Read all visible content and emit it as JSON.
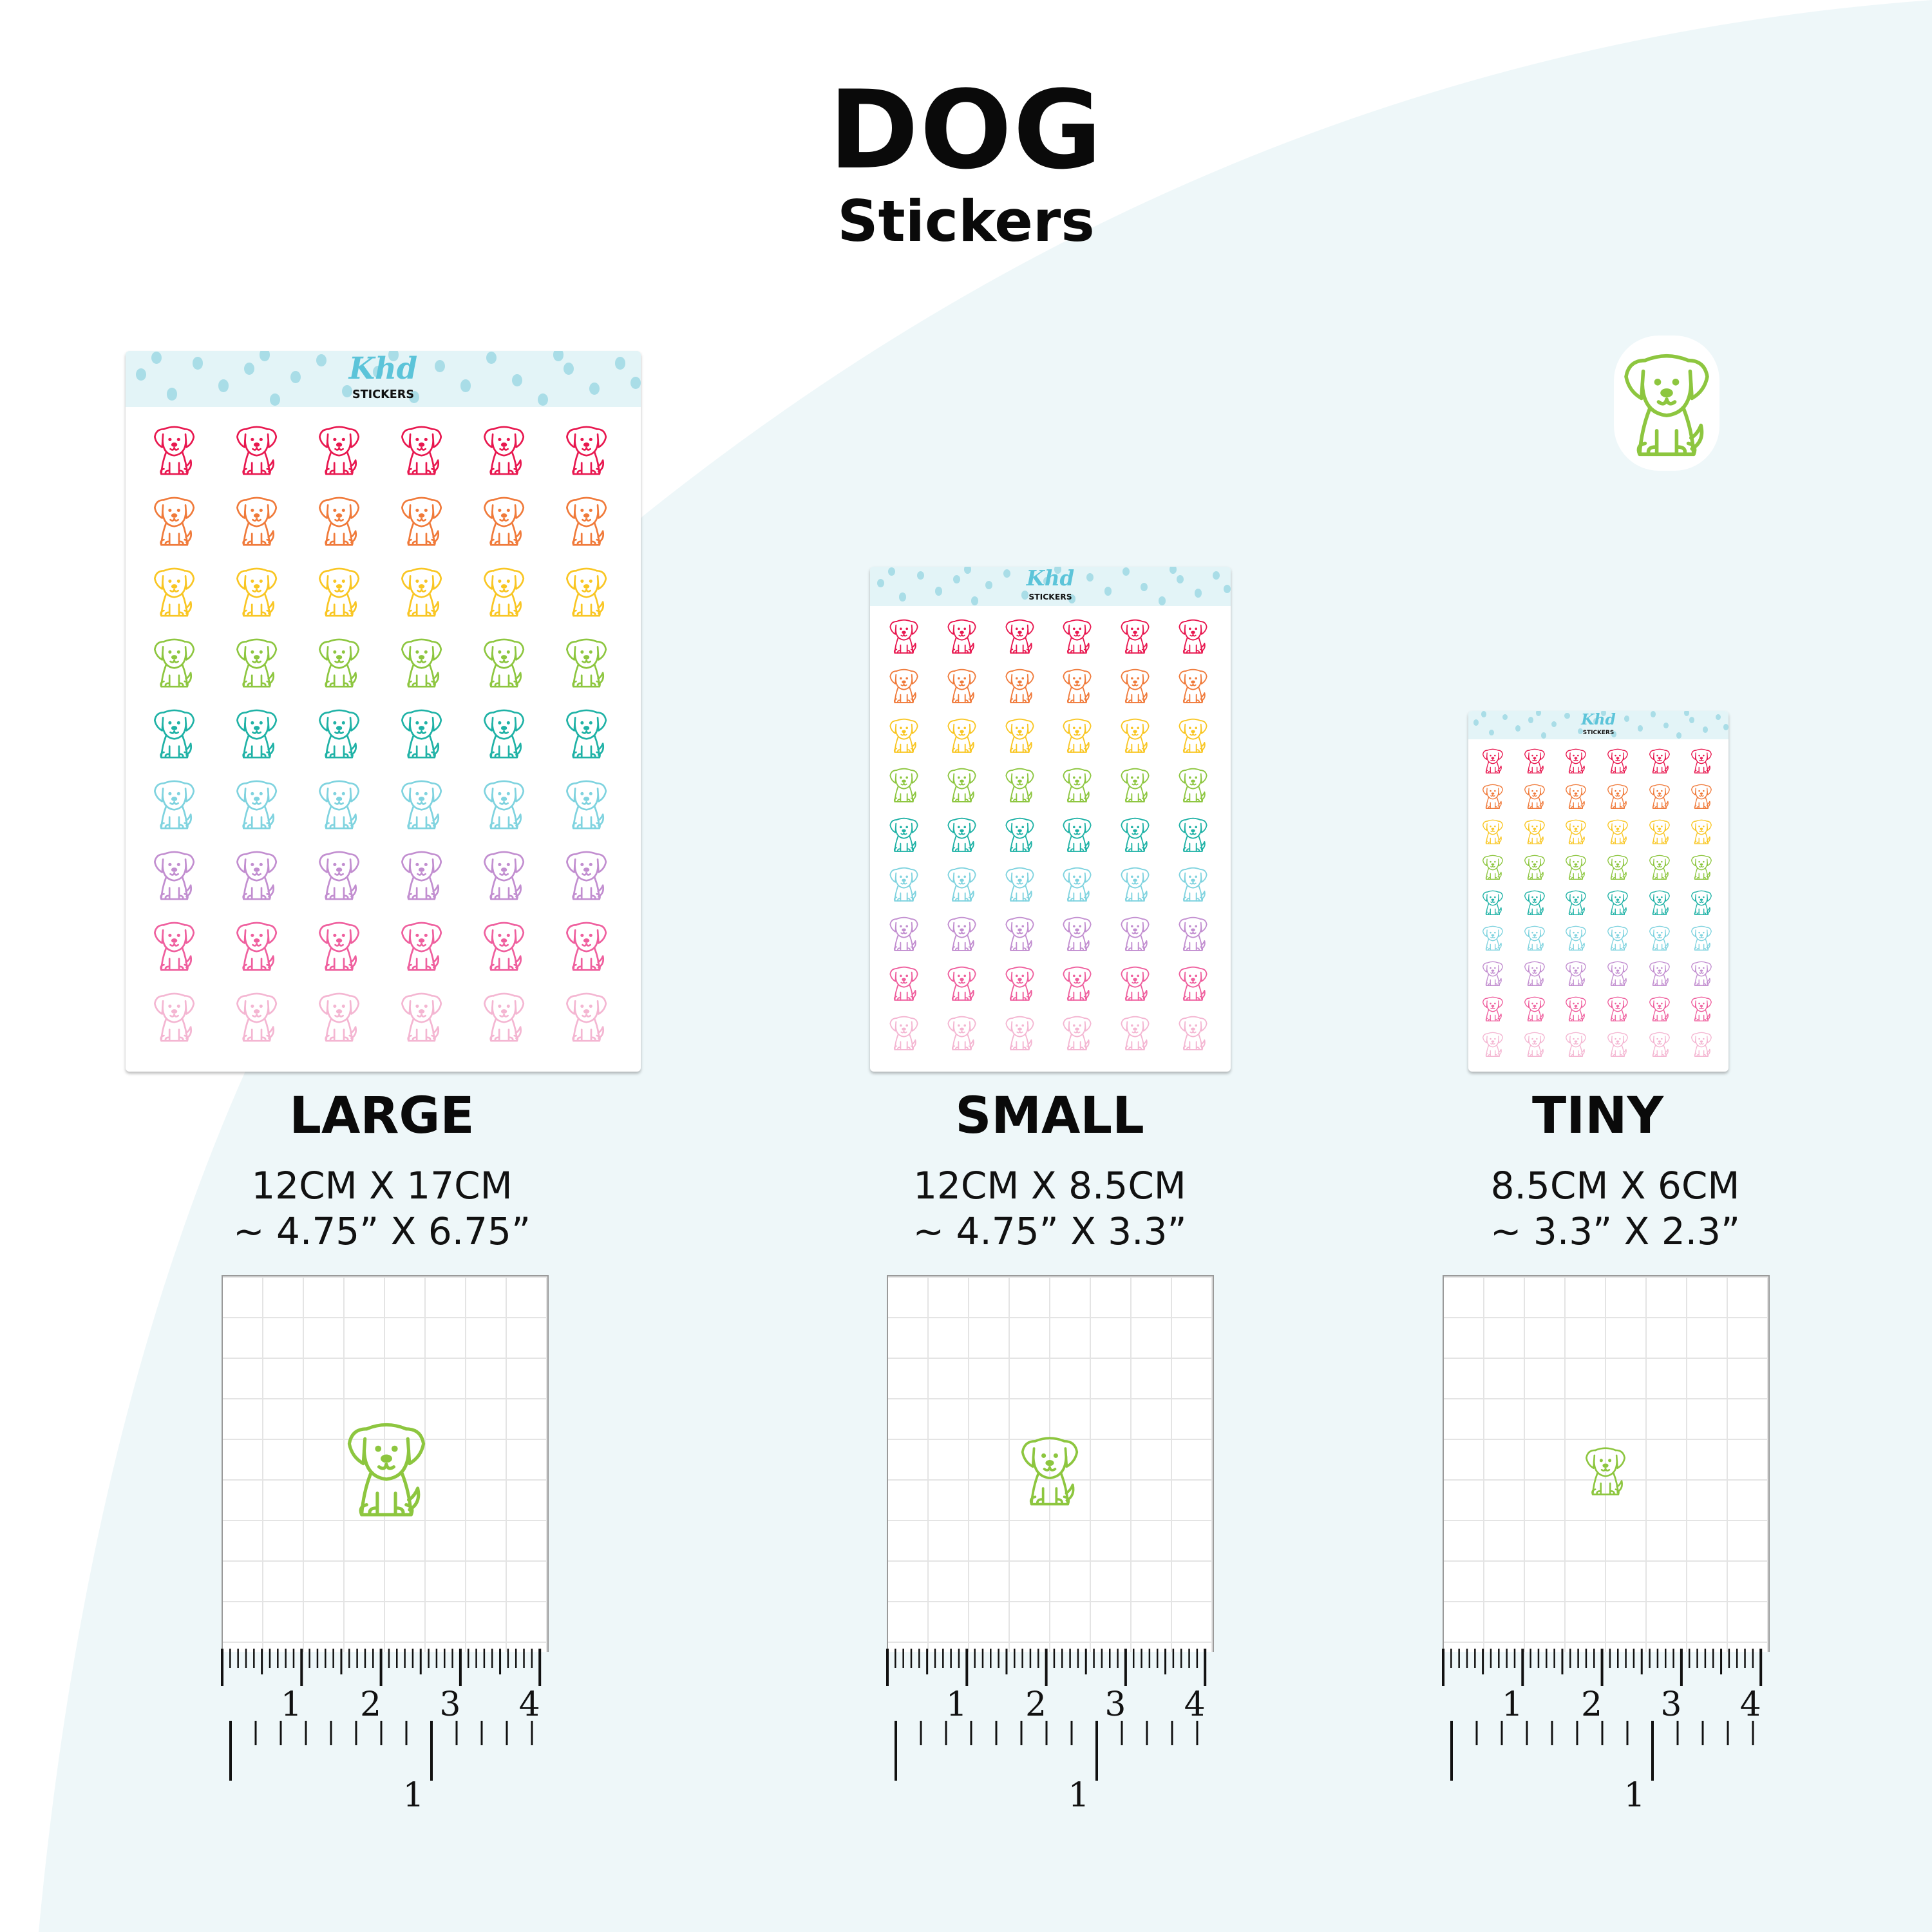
{
  "header": {
    "title": "DOG",
    "subtitle": "Stickers"
  },
  "colors": {
    "background_curve": "#eef7f9",
    "sticker_green": "#8dc63f",
    "logo_blue": "#5cc4d9",
    "rows": [
      "#e8174f",
      "#f07a3a",
      "#f9c623",
      "#8dc63f",
      "#1fb2a6",
      "#7fd3df",
      "#c28ed0",
      "#ef5f9e",
      "#f4b6d2"
    ]
  },
  "logo": {
    "script": "Khd",
    "text": "STICKERS"
  },
  "sheets": [
    {
      "name": "LARGE",
      "size_metric": "12CM X 17CM",
      "size_imperial": "~ 4.75” X 6.75”",
      "columns": 6,
      "rows": 9
    },
    {
      "name": "SMALL",
      "size_metric": "12CM X 8.5CM",
      "size_imperial": "~ 4.75” X 3.3”",
      "columns": 6,
      "rows": 9
    },
    {
      "name": "TINY",
      "size_metric": "8.5CM X 6CM",
      "size_imperial": "~ 3.3” X 2.3”",
      "columns": 6,
      "rows": 9
    }
  ],
  "ruler": {
    "top_labels": [
      "1",
      "2",
      "3",
      "4"
    ],
    "bottom_labels": [
      "1"
    ]
  },
  "icons": {
    "sticker": "dog-icon"
  }
}
